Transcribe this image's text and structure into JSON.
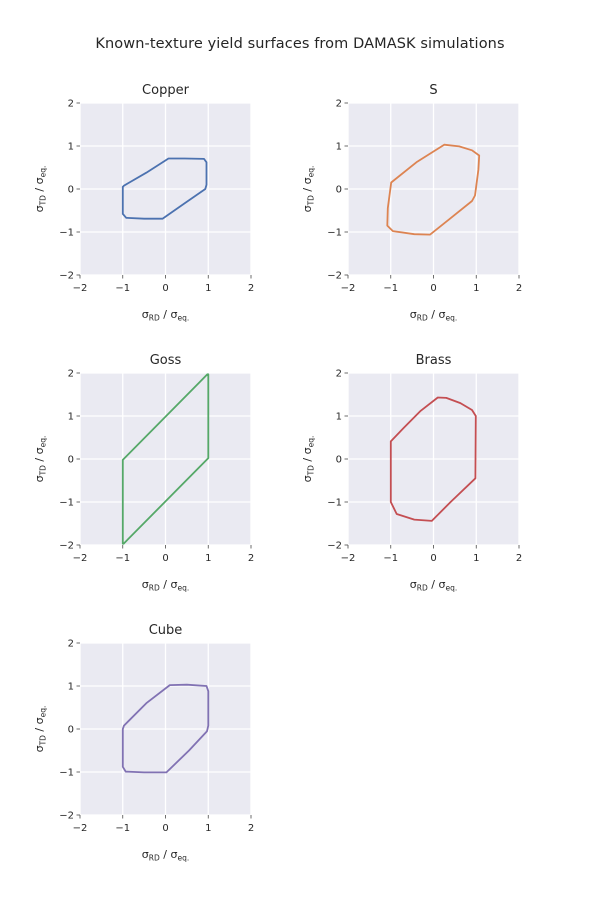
{
  "figure": {
    "title": "Known-texture yield surfaces from DAMASK simulations",
    "background": "#ffffff",
    "text_color": "#262626"
  },
  "style": {
    "plot_bg": "#eaeaf2",
    "grid_color": "#ffffff",
    "tick_color": "#4a4a4a"
  },
  "axes": {
    "range": [
      -2,
      2
    ],
    "ticks": [
      -2,
      -1,
      0,
      1,
      2
    ],
    "tick_labels": [
      "−2",
      "−1",
      "0",
      "1",
      "2"
    ],
    "grid": true,
    "xlabel_text": "σRD / σeq.",
    "ylabel_text": "σTD / σeq.",
    "xlabel_parts": [
      {
        "t": "σ",
        "sub": false
      },
      {
        "t": "RD",
        "sub": true
      },
      {
        "t": " / ",
        "sub": false
      },
      {
        "t": "σ",
        "sub": false
      },
      {
        "t": "eq.",
        "sub": true
      }
    ],
    "ylabel_parts": [
      {
        "t": "σ",
        "sub": false
      },
      {
        "t": "TD",
        "sub": true
      },
      {
        "t": " / ",
        "sub": false
      },
      {
        "t": "σ",
        "sub": false
      },
      {
        "t": "eq.",
        "sub": true
      }
    ]
  },
  "chart_data": [
    {
      "type": "line",
      "title": "Copper",
      "color": "#4c72b0",
      "xlabel": "σRD / σeq.",
      "ylabel": "σTD / σeq.",
      "xlim": [
        -2,
        2
      ],
      "ylim": [
        -2,
        2
      ],
      "closed": true,
      "points": [
        [
          -1.0,
          0.05
        ],
        [
          -1.0,
          -0.58
        ],
        [
          -0.92,
          -0.67
        ],
        [
          -0.5,
          -0.69
        ],
        [
          -0.07,
          -0.69
        ],
        [
          0.45,
          -0.33
        ],
        [
          0.93,
          0.0
        ],
        [
          0.96,
          0.1
        ],
        [
          0.96,
          0.62
        ],
        [
          0.9,
          0.7
        ],
        [
          0.45,
          0.71
        ],
        [
          0.07,
          0.71
        ],
        [
          -0.45,
          0.38
        ],
        [
          -0.97,
          0.08
        ]
      ]
    },
    {
      "type": "line",
      "title": "S",
      "color": "#dd8452",
      "xlabel": "σRD / σeq.",
      "ylabel": "σTD / σeq.",
      "xlim": [
        -2,
        2
      ],
      "ylim": [
        -2,
        2
      ],
      "closed": true,
      "points": [
        [
          -0.99,
          0.15
        ],
        [
          -1.07,
          -0.45
        ],
        [
          -1.08,
          -0.85
        ],
        [
          -0.95,
          -0.98
        ],
        [
          -0.45,
          -1.05
        ],
        [
          -0.08,
          -1.06
        ],
        [
          0.4,
          -0.68
        ],
        [
          0.9,
          -0.28
        ],
        [
          0.97,
          -0.15
        ],
        [
          1.05,
          0.45
        ],
        [
          1.07,
          0.78
        ],
        [
          0.9,
          0.9
        ],
        [
          0.6,
          0.99
        ],
        [
          0.25,
          1.03
        ],
        [
          -0.4,
          0.62
        ]
      ]
    },
    {
      "type": "line",
      "title": "Goss",
      "color": "#55a868",
      "xlabel": "σRD / σeq.",
      "ylabel": "σTD / σeq.",
      "xlim": [
        -2,
        2
      ],
      "ylim": [
        -2,
        2
      ],
      "closed": true,
      "points": [
        [
          -1.0,
          -0.02
        ],
        [
          0.98,
          1.97
        ],
        [
          1.0,
          1.97
        ],
        [
          1.0,
          0.02
        ],
        [
          -0.98,
          -1.97
        ],
        [
          -1.0,
          -1.97
        ]
      ]
    },
    {
      "type": "line",
      "title": "Brass",
      "color": "#c44e52",
      "xlabel": "σRD / σeq.",
      "ylabel": "σTD / σeq.",
      "xlim": [
        -2,
        2
      ],
      "ylim": [
        -2,
        2
      ],
      "closed": true,
      "points": [
        [
          -1.0,
          0.41
        ],
        [
          -1.0,
          -1.0
        ],
        [
          -0.86,
          -1.28
        ],
        [
          -0.45,
          -1.41
        ],
        [
          -0.04,
          -1.44
        ],
        [
          0.4,
          -1.0
        ],
        [
          0.98,
          -0.45
        ],
        [
          0.99,
          1.0
        ],
        [
          0.9,
          1.14
        ],
        [
          0.63,
          1.3
        ],
        [
          0.3,
          1.42
        ],
        [
          0.1,
          1.43
        ],
        [
          -0.3,
          1.12
        ],
        [
          -0.7,
          0.72
        ]
      ]
    },
    {
      "type": "line",
      "title": "Cube",
      "color": "#8172b3",
      "xlabel": "σRD / σeq.",
      "ylabel": "σTD / σeq.",
      "xlim": [
        -2,
        2
      ],
      "ylim": [
        -2,
        2
      ],
      "closed": true,
      "points": [
        [
          -1.0,
          0.0
        ],
        [
          -1.0,
          -0.88
        ],
        [
          -0.93,
          -0.99
        ],
        [
          -0.5,
          -1.01
        ],
        [
          0.02,
          -1.01
        ],
        [
          0.55,
          -0.5
        ],
        [
          0.97,
          -0.05
        ],
        [
          1.0,
          0.08
        ],
        [
          1.0,
          0.88
        ],
        [
          0.96,
          1.0
        ],
        [
          0.5,
          1.03
        ],
        [
          0.1,
          1.02
        ],
        [
          -0.45,
          0.6
        ],
        [
          -0.97,
          0.08
        ]
      ]
    }
  ]
}
